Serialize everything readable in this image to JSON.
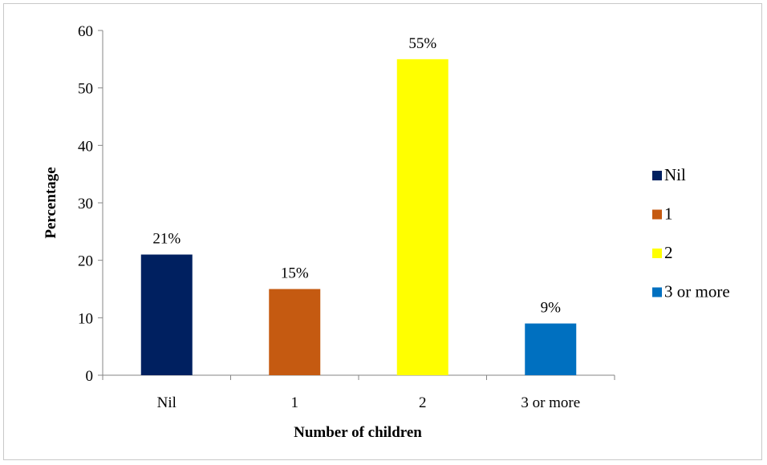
{
  "chart_data": {
    "type": "bar",
    "categories": [
      "Nil",
      "1",
      "2",
      "3 or more"
    ],
    "values": [
      21,
      15,
      55,
      9
    ],
    "data_labels": [
      "21%",
      "15%",
      "55%",
      "9%"
    ],
    "colors": [
      "#002060",
      "#C55A11",
      "#FFFF00",
      "#0070C0"
    ],
    "xlabel": "Number of children",
    "ylabel": "Percentage",
    "ylim": [
      0,
      60
    ],
    "yticks": [
      0,
      10,
      20,
      30,
      40,
      50,
      60
    ],
    "grid": false,
    "legend": {
      "placement": "right",
      "entries": [
        "Nil",
        "1",
        "2",
        "3 or more"
      ]
    }
  }
}
